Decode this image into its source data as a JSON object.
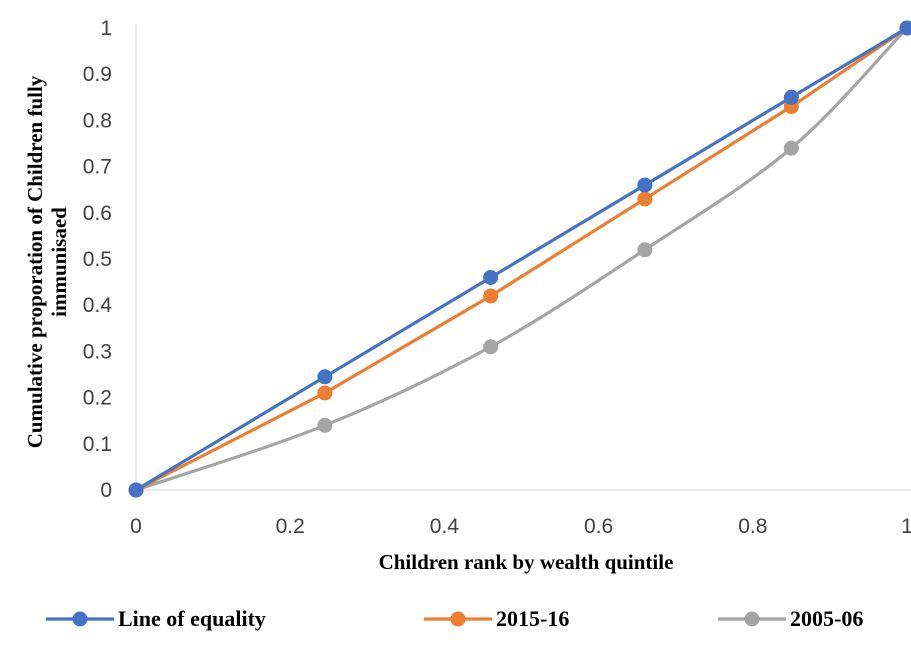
{
  "chart_data": {
    "type": "line",
    "title": "",
    "xlabel": "Children rank by wealth quintile",
    "ylabel_lines": [
      "Cumulative proporation of Children fully",
      "immunisaed"
    ],
    "xlim": [
      0,
      1
    ],
    "ylim": [
      0,
      1
    ],
    "xticks": [
      "0",
      "0.2",
      "0.4",
      "0.6",
      "0.8",
      "1"
    ],
    "yticks": [
      "0",
      "0.1",
      "0.2",
      "0.3",
      "0.4",
      "0.5",
      "0.6",
      "0.7",
      "0.8",
      "0.9",
      "1"
    ],
    "grid": false,
    "legend_position": "bottom",
    "series": [
      {
        "name": "Line of equality",
        "color": "#4472c4",
        "smooth": false,
        "x": [
          0,
          0.245,
          0.46,
          0.66,
          0.85,
          1
        ],
        "y": [
          0,
          0.245,
          0.46,
          0.66,
          0.85,
          1
        ]
      },
      {
        "name": "2015-16",
        "color": "#ed7d31",
        "smooth": false,
        "x": [
          0,
          0.245,
          0.46,
          0.66,
          0.85,
          1
        ],
        "y": [
          0,
          0.21,
          0.42,
          0.63,
          0.83,
          1
        ]
      },
      {
        "name": "2005-06",
        "color": "#a5a5a5",
        "smooth": true,
        "x": [
          0,
          0.245,
          0.46,
          0.66,
          0.85,
          1
        ],
        "y": [
          0,
          0.14,
          0.31,
          0.52,
          0.74,
          1
        ]
      }
    ]
  }
}
